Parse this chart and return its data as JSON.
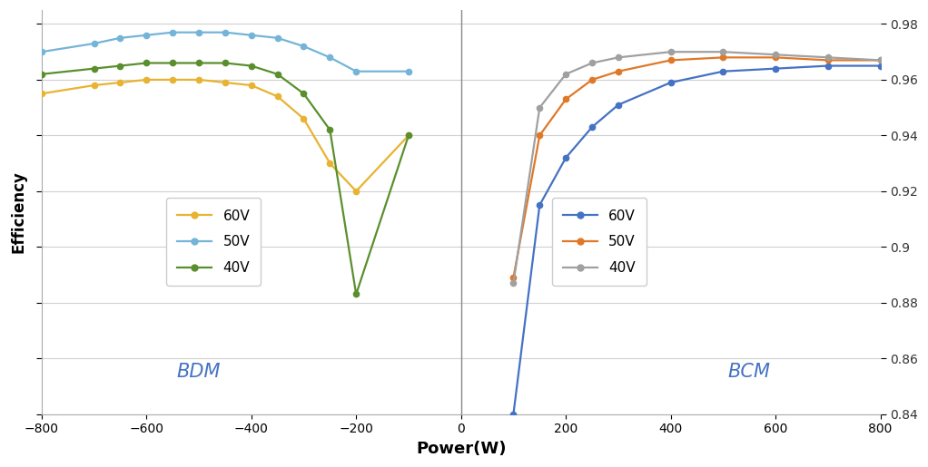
{
  "bdm_60v_x": [
    -800,
    -700,
    -650,
    -600,
    -550,
    -500,
    -450,
    -400,
    -350,
    -300,
    -250,
    -200,
    -100
  ],
  "bdm_60v_y": [
    0.955,
    0.958,
    0.959,
    0.96,
    0.96,
    0.96,
    0.959,
    0.958,
    0.954,
    0.946,
    0.93,
    0.92,
    0.94
  ],
  "bdm_50v_x": [
    -800,
    -700,
    -650,
    -600,
    -550,
    -500,
    -450,
    -400,
    -350,
    -300,
    -250,
    -200,
    -100
  ],
  "bdm_50v_y": [
    0.97,
    0.973,
    0.975,
    0.976,
    0.977,
    0.977,
    0.977,
    0.976,
    0.975,
    0.972,
    0.968,
    0.963,
    0.963
  ],
  "bdm_40v_x": [
    -800,
    -700,
    -650,
    -600,
    -550,
    -500,
    -450,
    -400,
    -350,
    -300,
    -250,
    -200,
    -100
  ],
  "bdm_40v_y": [
    0.962,
    0.964,
    0.965,
    0.966,
    0.966,
    0.966,
    0.966,
    0.965,
    0.962,
    0.955,
    0.942,
    0.883,
    0.94
  ],
  "bcm_60v_x": [
    100,
    150,
    200,
    250,
    300,
    400,
    500,
    600,
    700,
    800
  ],
  "bcm_60v_y": [
    0.84,
    0.915,
    0.932,
    0.943,
    0.951,
    0.959,
    0.963,
    0.964,
    0.965,
    0.965
  ],
  "bcm_50v_x": [
    100,
    150,
    200,
    250,
    300,
    400,
    500,
    600,
    700,
    800
  ],
  "bcm_50v_y": [
    0.889,
    0.94,
    0.953,
    0.96,
    0.963,
    0.967,
    0.968,
    0.968,
    0.967,
    0.967
  ],
  "bcm_40v_x": [
    100,
    150,
    200,
    250,
    300,
    400,
    500,
    600,
    700,
    800
  ],
  "bcm_40v_y": [
    0.887,
    0.95,
    0.962,
    0.966,
    0.968,
    0.97,
    0.97,
    0.969,
    0.968,
    0.967
  ],
  "color_60v": "#e8b332",
  "color_50v": "#74b4d8",
  "color_40v": "#5a8f2d",
  "color_bcm_60v": "#4472c4",
  "color_bcm_50v": "#e07828",
  "color_bcm_40v": "#a0a0a0",
  "ylim": [
    0.84,
    0.985
  ],
  "xlim": [
    -800,
    800
  ],
  "xlabel": "Power(W)",
  "ylabel": "Efficiency",
  "yticks": [
    0.84,
    0.86,
    0.88,
    0.9,
    0.92,
    0.94,
    0.96,
    0.98
  ],
  "xticks": [
    -800,
    -600,
    -400,
    -200,
    0,
    200,
    400,
    600,
    800
  ],
  "bdm_label": "BDM",
  "bcm_label": "BCM",
  "background_color": "#ffffff",
  "grid_color": "#d0d0d0"
}
